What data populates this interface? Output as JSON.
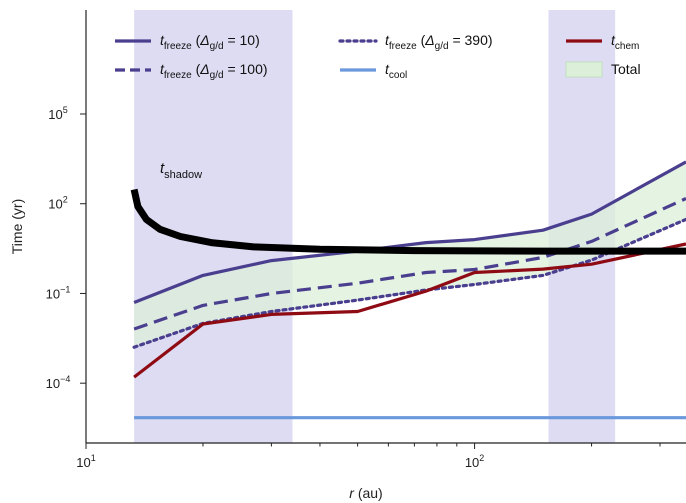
{
  "chart_data": {
    "type": "line",
    "x_scale": "log",
    "y_scale": "log",
    "xlim": [
      10,
      350
    ],
    "ylim": [
      1e-06,
      300000000
    ],
    "x_ticks": [
      {
        "value": 10,
        "base": "10",
        "exp": "1"
      },
      {
        "value": 100,
        "base": "10",
        "exp": "2"
      }
    ],
    "y_ticks": [
      {
        "value": 0.0001,
        "base": "10",
        "exp": "−4"
      },
      {
        "value": 0.1,
        "base": "10",
        "exp": "−1"
      },
      {
        "value": 100,
        "base": "10",
        "exp": "2"
      },
      {
        "value": 100000,
        "base": "10",
        "exp": "5"
      }
    ],
    "xlabel": {
      "italic": "r",
      "rest": " (au)"
    },
    "ylabel": "Time (yr)",
    "shaded_regions": [
      {
        "x": [
          13.3,
          34
        ],
        "color": "#dedcf3"
      },
      {
        "x": [
          155,
          230
        ],
        "color": "#dedcf3"
      }
    ],
    "series": [
      {
        "key": "freeze10",
        "legend": {
          "main": "t",
          "sub": "freeze",
          "paren": " (",
          "delta": "Δ",
          "delta_sub": "g/d",
          "tail": " = 10)"
        },
        "color": "#4a3f8f",
        "style": "solid",
        "width": 3.2,
        "x": [
          13.3,
          20,
          30,
          50,
          75,
          100,
          150,
          200,
          350
        ],
        "y": [
          0.05,
          0.4,
          1.25,
          2.6,
          5.0,
          6.3,
          13,
          45,
          2500
        ]
      },
      {
        "key": "freeze100",
        "legend": {
          "main": "t",
          "sub": "freeze",
          "paren": " (",
          "delta": "Δ",
          "delta_sub": "g/d",
          "tail": " = 100)"
        },
        "color": "#4a3f8f",
        "style": "dashed",
        "width": 3.2,
        "x": [
          13.3,
          20,
          30,
          50,
          75,
          100,
          150,
          200,
          350
        ],
        "y": [
          0.0065,
          0.04,
          0.1,
          0.22,
          0.5,
          0.63,
          1.6,
          5.5,
          150
        ]
      },
      {
        "key": "freeze390",
        "legend": {
          "main": "t",
          "sub": "freeze",
          "paren": " (",
          "delta": "Δ",
          "delta_sub": "g/d",
          "tail": " = 390)"
        },
        "color": "#4a3f8f",
        "style": "dotted",
        "width": 3.2,
        "x": [
          13.3,
          20,
          30,
          50,
          75,
          100,
          150,
          200,
          350
        ],
        "y": [
          0.0016,
          0.01,
          0.025,
          0.06,
          0.13,
          0.2,
          0.4,
          1.3,
          30
        ]
      },
      {
        "key": "cool",
        "legend": {
          "main": "t",
          "sub": "cool"
        },
        "color": "#6a98dc",
        "style": "solid",
        "width": 3.2,
        "x": [
          13.3,
          350
        ],
        "y": [
          7e-06,
          7e-06
        ]
      },
      {
        "key": "chem",
        "legend": {
          "main": "t",
          "sub": "chem"
        },
        "color": "#8f0b14",
        "style": "solid",
        "width": 3.2,
        "x": [
          13.3,
          20,
          30,
          50,
          75,
          100,
          150,
          200,
          350
        ],
        "y": [
          0.00016,
          0.0095,
          0.02,
          0.025,
          0.12,
          0.5,
          0.65,
          0.95,
          4.5
        ]
      },
      {
        "key": "shadow",
        "label": {
          "main": "t",
          "sub": "shadow"
        },
        "color": "#000000",
        "style": "solid",
        "width": 7,
        "x": [
          13.3,
          13.6,
          14.3,
          15.5,
          17.5,
          21,
          27,
          40,
          70,
          150,
          350
        ],
        "y": [
          300,
          80,
          30,
          14,
          8,
          5,
          3.6,
          3.0,
          2.7,
          2.6,
          2.6
        ]
      }
    ],
    "band": {
      "legend": "Total",
      "fill": "#dcefd9",
      "fill_opacity": 0.75,
      "upper": "freeze10",
      "lower": "freeze390"
    },
    "legend_position": "top"
  }
}
